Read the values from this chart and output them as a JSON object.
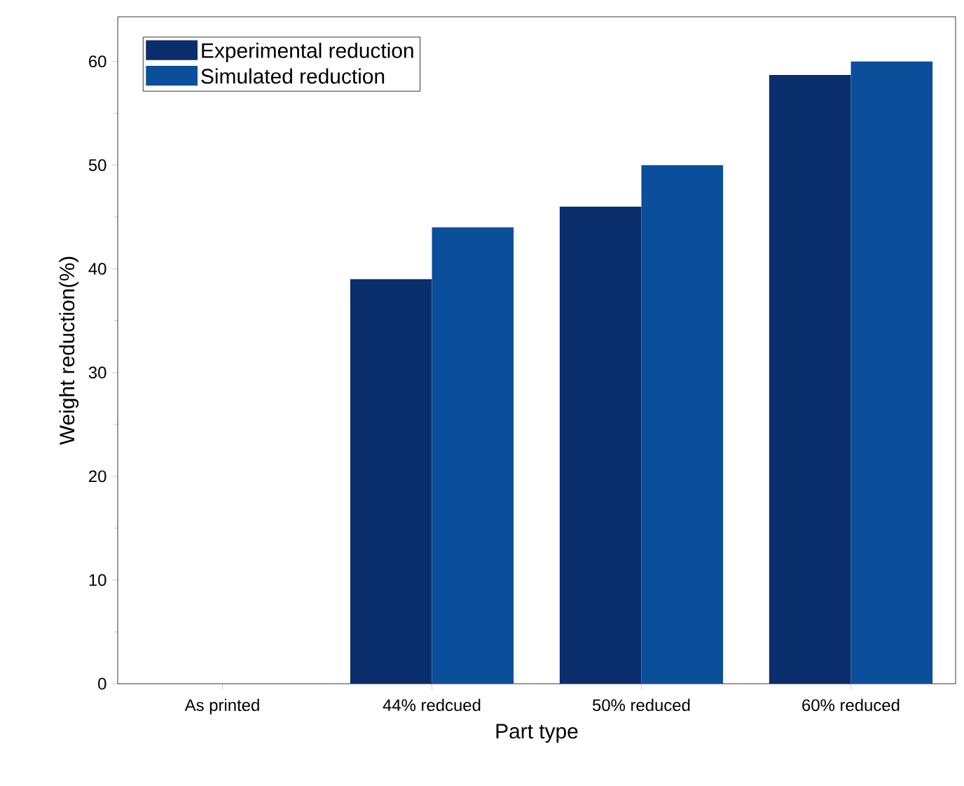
{
  "chart_data": {
    "type": "bar",
    "xlabel": "Part type",
    "ylabel": "Weight reduction(%)",
    "categories": [
      "As printed",
      "44% redcued",
      "50% reduced",
      "60% reduced"
    ],
    "series": [
      {
        "name": "Experimental reduction",
        "color": "#0a2d6b",
        "values": [
          0,
          39,
          46,
          58.7
        ]
      },
      {
        "name": "Simulated reduction",
        "color": "#0b4f9b",
        "values": [
          0,
          44,
          50,
          60
        ]
      }
    ],
    "ylim": [
      0,
      64.3
    ],
    "yticks": [
      0,
      10,
      20,
      30,
      40,
      50,
      60
    ],
    "grid": false,
    "legend": "top left"
  }
}
